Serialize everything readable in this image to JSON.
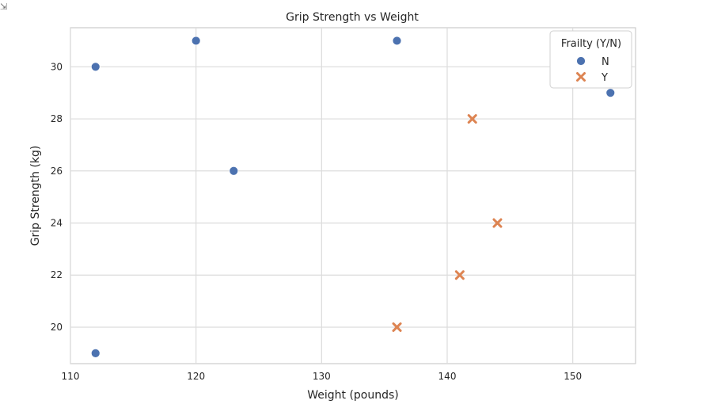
{
  "chart_data": {
    "type": "scatter",
    "title": "Grip Strength vs Weight",
    "xlabel": "Weight (pounds)",
    "ylabel": "Grip Strength (kg)",
    "xlim": [
      110,
      155
    ],
    "ylim": [
      18.6,
      31.5
    ],
    "xticks": [
      110,
      120,
      130,
      140,
      150
    ],
    "yticks": [
      20,
      22,
      24,
      26,
      28,
      30
    ],
    "grid": true,
    "legend": {
      "title": "Frailty (Y/N)",
      "placement": "top-right"
    },
    "series": [
      {
        "name": "N",
        "marker": "circle",
        "color": "#4c72b0",
        "points": [
          [
            112,
            30
          ],
          [
            120,
            31
          ],
          [
            123,
            26
          ],
          [
            136,
            31
          ],
          [
            153,
            29
          ],
          [
            112,
            19
          ]
        ]
      },
      {
        "name": "Y",
        "marker": "x",
        "color": "#dd8452",
        "points": [
          [
            142,
            28
          ],
          [
            144,
            24
          ],
          [
            141,
            22
          ],
          [
            136,
            20
          ]
        ]
      }
    ]
  },
  "corner_icon": "expand-icon"
}
